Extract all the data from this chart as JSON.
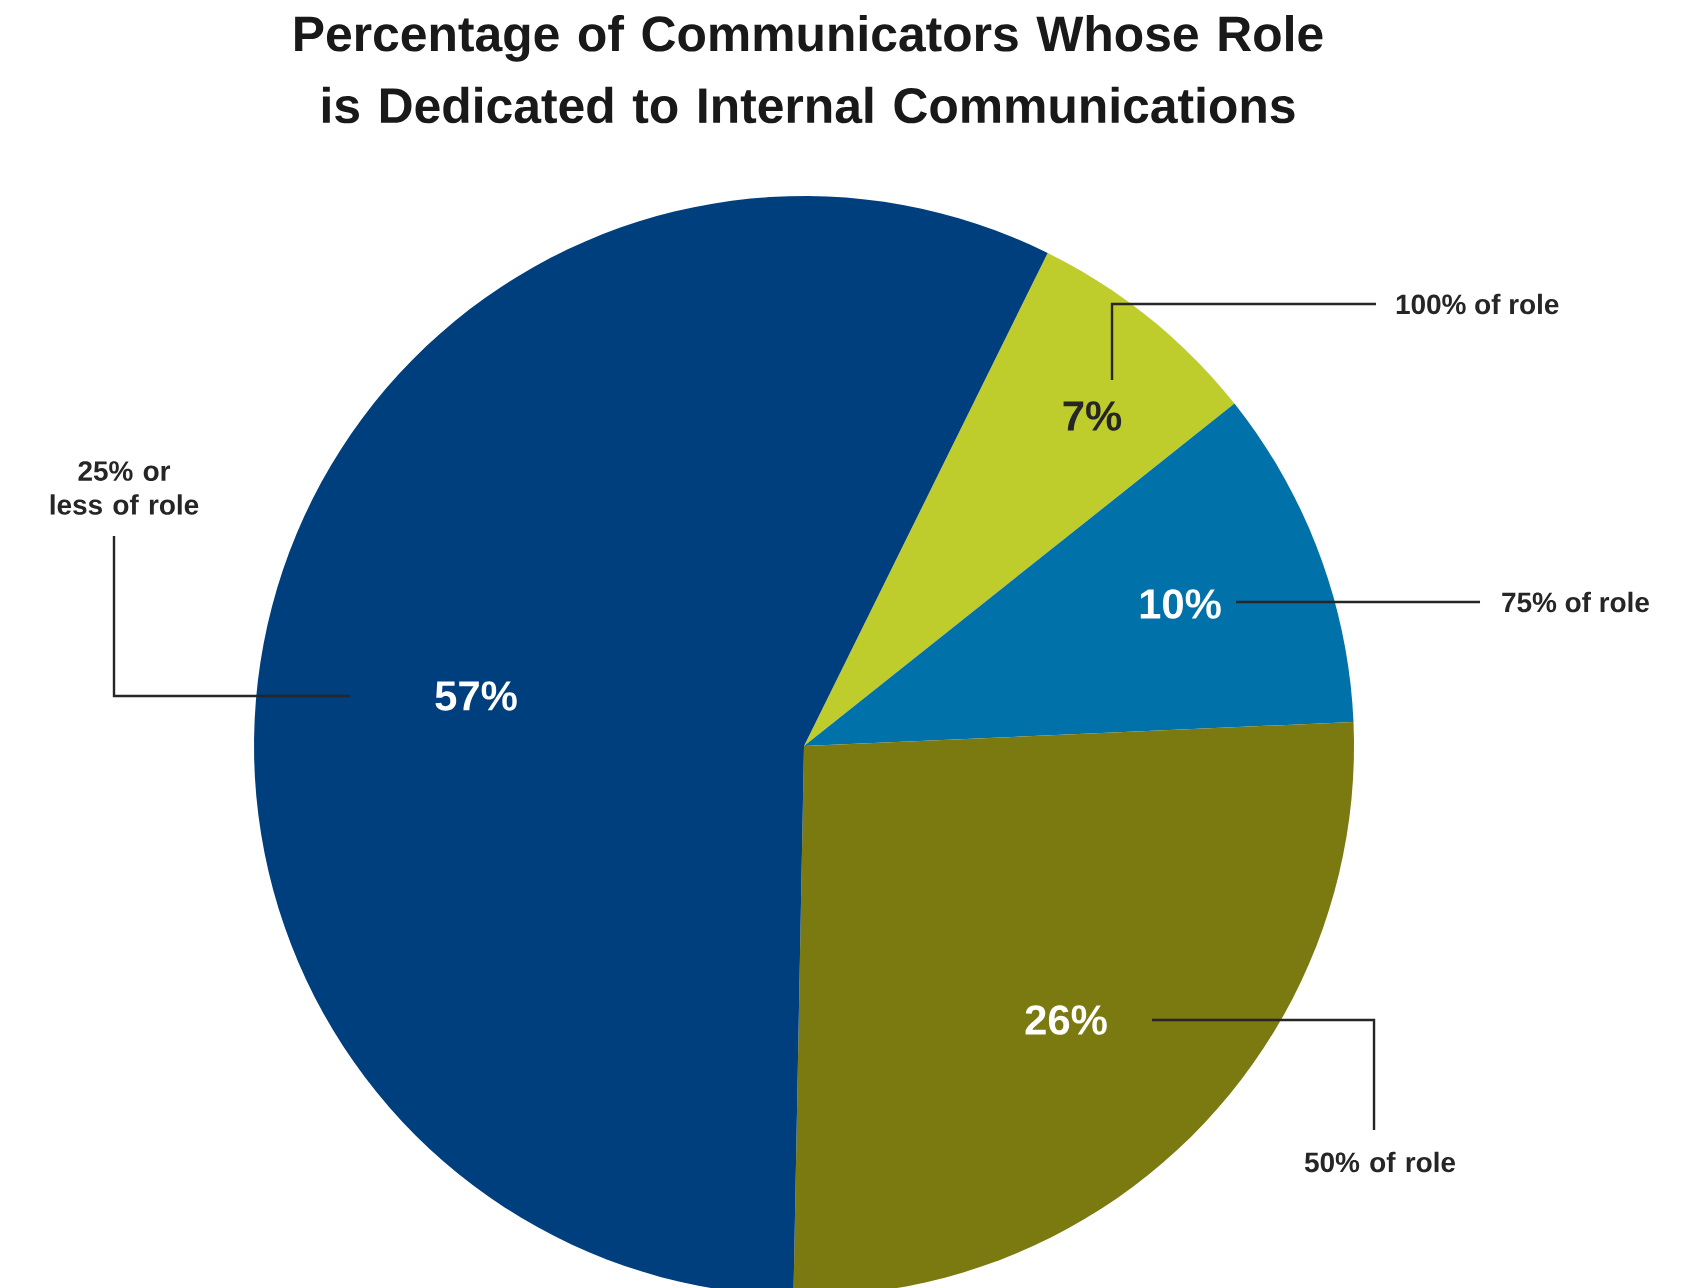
{
  "chart_data": {
    "type": "pie",
    "title": "Percentage of Communicators Whose Role is Dedicated to Internal Communications",
    "categories": [
      "100% of role",
      "75% of role",
      "50% of role",
      "25% or less of role"
    ],
    "values": [
      7,
      10,
      26,
      57
    ],
    "value_labels": [
      "7%",
      "10%",
      "26%",
      "57%"
    ],
    "colors": [
      "#bfcd2c",
      "#0071a9",
      "#7b7a10",
      "#003f7d"
    ]
  }
}
